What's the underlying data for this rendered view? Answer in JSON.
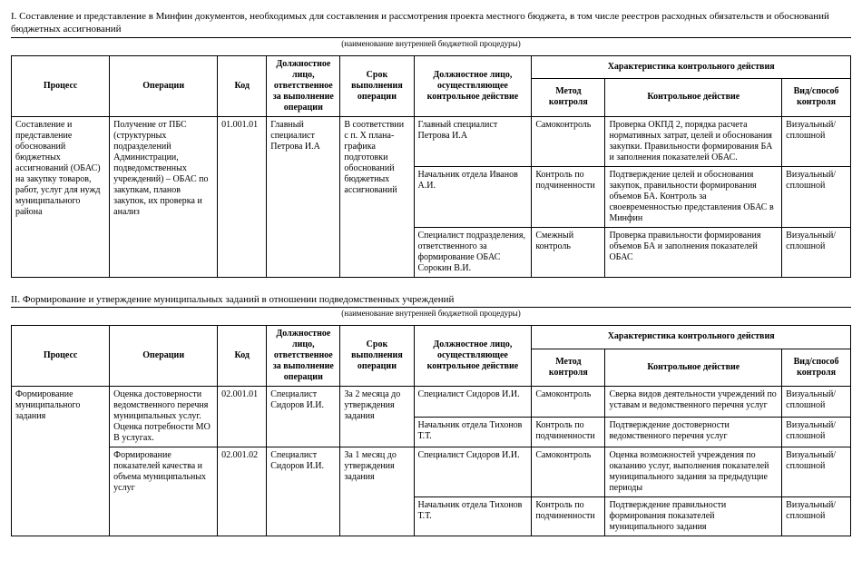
{
  "section1": {
    "title": "I. Составление и представление в Минфин документов, необходимых для составления и рассмотрения проекта местного бюджета, в том числе реестров расходных обязательств и обоснований бюджетных ассигнований",
    "subcaption": "(наименование внутренней бюджетной процедуры)"
  },
  "section2": {
    "title": "II. Формирование и утверждение муниципальных заданий в отношении подведомственных учреждений",
    "subcaption": "(наименование внутренней бюджетной процедуры)"
  },
  "headers": {
    "process": "Процесс",
    "operations": "Операции",
    "code": "Код",
    "responsible": "Должностное лицо, ответственное за выполнение операции",
    "term": "Срок выполнения операции",
    "controller": "Должностное лицо, осуществляющее контрольное действие",
    "charGroup": "Характеристика контрольного действия",
    "method": "Метод контроля",
    "action": "Контрольное действие",
    "mode": "Вид/способ контроля"
  },
  "t1": {
    "process": "Составление и представление обоснований бюджетных ассигнований (ОБАС) на закупку товаров, работ, услуг для нужд муниципального района",
    "operation": "Получение от ПБС (структурных подразделений Администрации, подведомственных учреждений) – ОБАС по   закупкам, планов закупок, их проверка и анализ",
    "code": "01.001.01",
    "responsible": "Главный специалист Петрова И.А",
    "term": "В соответствии с п. X плана-графика подготовки обоснований бюджетных ассигнований",
    "rows": [
      {
        "ctrl": "Главный специалист Петрова И.А",
        "method": "Самоконтроль",
        "action": "Проверка ОКПД 2, порядка расчета нормативных затрат, целей и обоснования закупки. Правильности формирования БА и заполнения показателей ОБАС.",
        "mode": "Визуальный/ сплошной"
      },
      {
        "ctrl": "Начальник отдела Иванов А.И.",
        "method": "Контроль по подчиненности",
        "action": "Подтверждение целей и обоснования закупок, правильности формирования объемов БА. Контроль за своевременностью представления ОБАС в Минфин",
        "mode": "Визуальный/ сплошной"
      },
      {
        "ctrl": "Специалист подразделения, ответственного за формирование ОБАС Сорокин В.И.",
        "method": "Смежный контроль",
        "action": "Проверка правильности формирования объемов БА и заполнения показателей ОБАС",
        "mode": "Визуальный/ сплошной"
      }
    ]
  },
  "t2": {
    "process": "Формирование муниципального задания",
    "g1": {
      "operation": "Оценка достоверности ведомственного перечня муниципальных услуг. Оценка потребности МО В услугах.",
      "code": "02.001.01",
      "responsible": "Специалист Сидоров И.И.",
      "term": "За 2 месяца до утверждения задания",
      "rows": [
        {
          "ctrl": "Специалист Сидоров И.И.",
          "method": "Самоконтроль",
          "action": "Сверка видов деятельности учреждений по уставам и ведомственного перечня услуг",
          "mode": "Визуальный/ сплошной"
        },
        {
          "ctrl": "Начальник отдела Тихонов Т.Т.",
          "method": "Контроль по подчиненности",
          "action": "Подтверждение достоверности ведомственного перечня услуг",
          "mode": "Визуальный/ сплошной"
        }
      ]
    },
    "g2": {
      "operation": "Формирование показателей качества и объема муниципальных услуг",
      "code": "02.001.02",
      "responsible": "Специалист Сидоров И.И.",
      "term": "За 1 месяц до утверждения задания",
      "rows": [
        {
          "ctrl": "Специалист Сидоров И.И.",
          "method": "Самоконтроль",
          "action": "Оценка возможностей учреждения по оказанию услуг, выполнения показателей муниципального задания за предыдущие периоды",
          "mode": "Визуальный/ сплошной"
        },
        {
          "ctrl": "Начальник отдела Тихонов Т.Т.",
          "method": "Контроль по подчиненности",
          "action": "Подтверждение правильности формирования показателей муниципального задания",
          "mode": "Визуальный/ сплошной"
        }
      ]
    }
  }
}
